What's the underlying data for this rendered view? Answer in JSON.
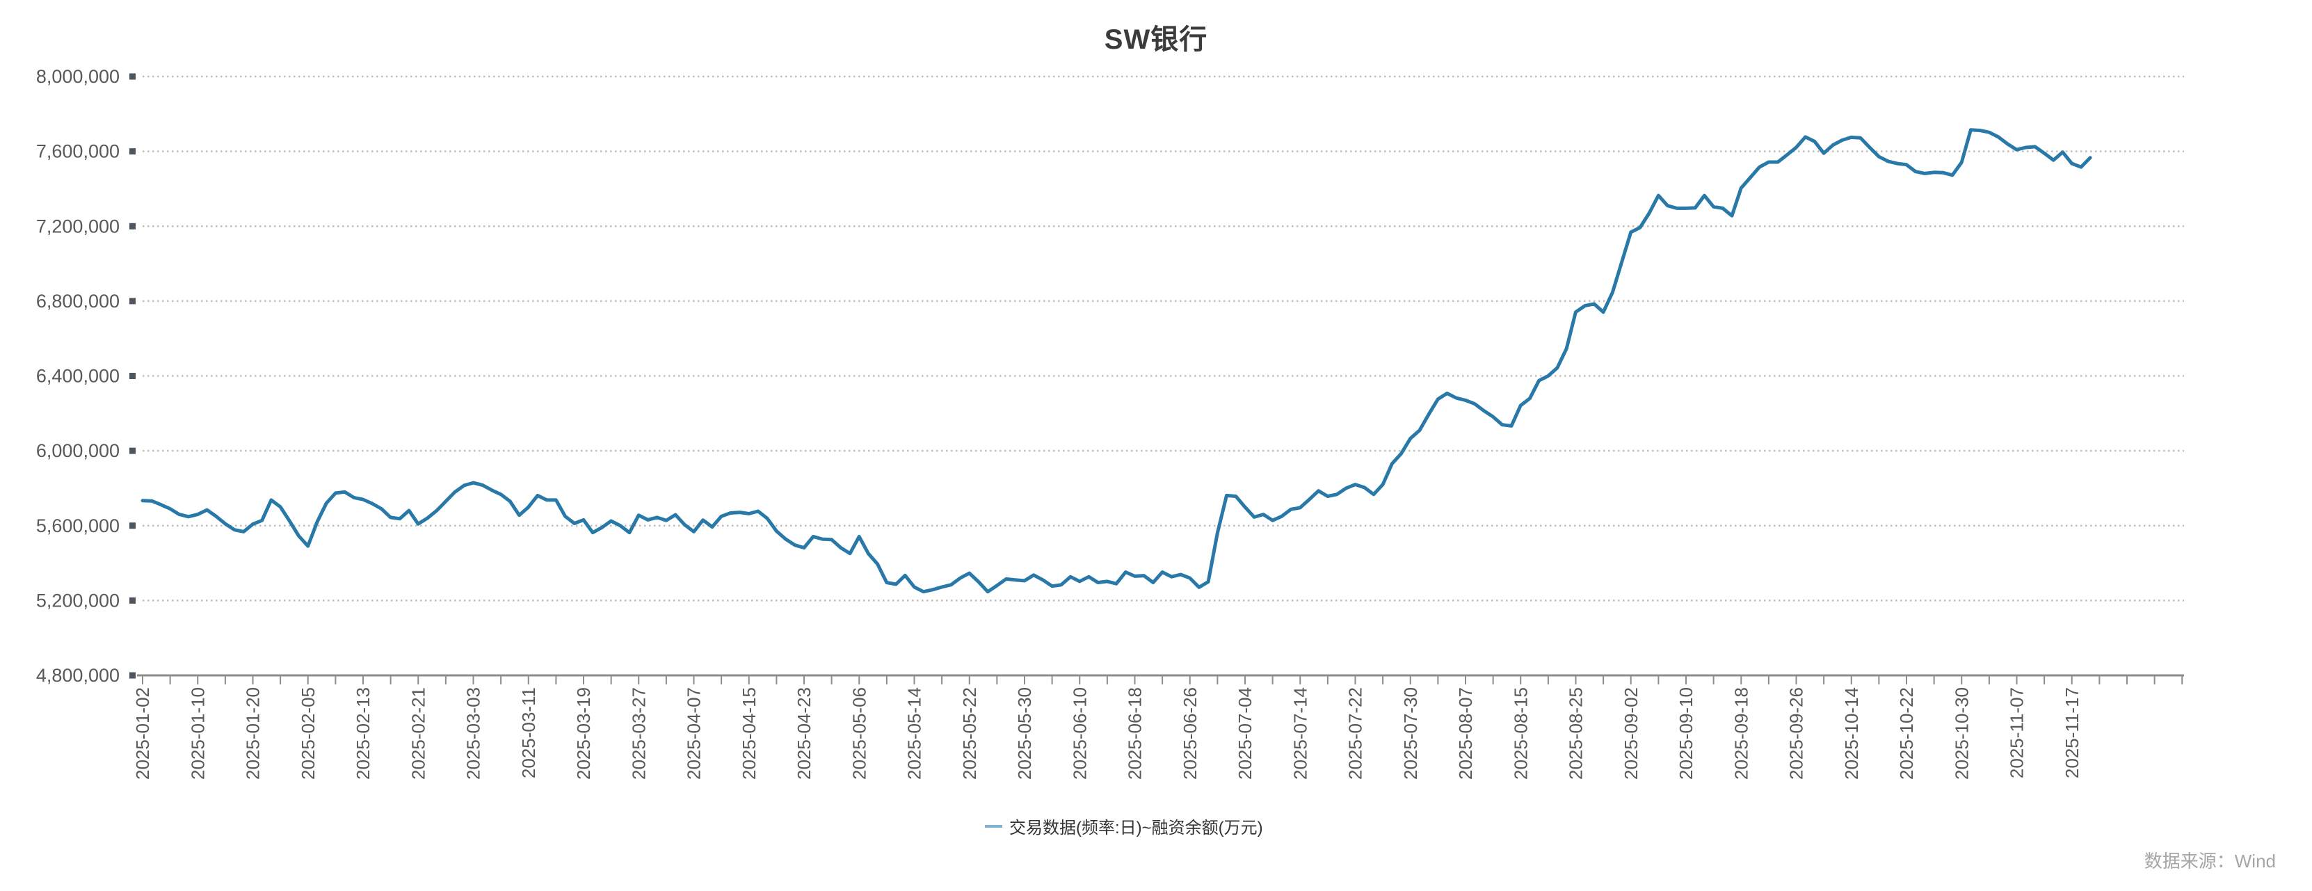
{
  "title": "SW银行",
  "legend": {
    "label": "交易数据(频率:日)~融资余额(万元)",
    "marker": "line-dash-icon"
  },
  "source_note": "数据来源：Wind",
  "colors": {
    "line": "#2878a8",
    "legend_marker": "#7fb3d3",
    "grid": "#bfbfbf",
    "axis": "#8c8c8c",
    "tick_square": "#4d555e",
    "axis_text": "#595959",
    "title_text": "#3b3b3b",
    "source_text": "#a6a6a6",
    "background": "#ffffff"
  },
  "chart_data": {
    "type": "line",
    "title": "SW银行",
    "xlabel": "",
    "ylabel": "",
    "ylim": [
      4800000,
      8000000
    ],
    "ytick_step": 400000,
    "y_tick_labels": [
      "4,800,000",
      "5,200,000",
      "5,600,000",
      "6,000,000",
      "6,400,000",
      "6,800,000",
      "7,200,000",
      "7,600,000",
      "8,000,000"
    ],
    "grid": "dotted-horizontal",
    "legend_position": "bottom-center",
    "x_tick_labels": [
      "2025-01-02",
      "2025-01-10",
      "2025-01-20",
      "2025-02-05",
      "2025-02-13",
      "2025-02-21",
      "2025-03-03",
      "2025-03-11",
      "2025-03-19",
      "2025-03-27",
      "2025-04-07",
      "2025-04-15",
      "2025-04-23",
      "2025-05-06",
      "2025-05-14",
      "2025-05-22",
      "2025-05-30",
      "2025-06-10",
      "2025-06-18",
      "2025-06-26",
      "2025-07-04",
      "2025-07-14",
      "2025-07-22",
      "2025-07-30",
      "2025-08-07",
      "2025-08-15",
      "2025-08-25",
      "2025-09-02",
      "2025-09-10",
      "2025-09-18",
      "2025-09-26",
      "2025-10-14",
      "2025-10-22",
      "2025-10-30",
      "2025-11-07",
      "2025-11-17"
    ],
    "x_label_every_n_points": 6,
    "series": [
      {
        "name": "交易数据(频率:日)~融资余额(万元)",
        "values": [
          5734000,
          5732000,
          5712000,
          5690000,
          5660000,
          5648000,
          5660000,
          5684000,
          5650000,
          5610000,
          5578000,
          5568000,
          5608000,
          5628000,
          5737000,
          5700000,
          5625000,
          5545000,
          5491000,
          5620000,
          5720000,
          5774000,
          5780000,
          5750000,
          5740000,
          5718000,
          5690000,
          5644000,
          5637000,
          5681000,
          5609000,
          5640000,
          5680000,
          5730000,
          5780000,
          5815000,
          5829000,
          5817000,
          5790000,
          5767000,
          5730000,
          5656000,
          5699000,
          5761000,
          5737000,
          5737000,
          5650000,
          5612000,
          5631000,
          5563000,
          5590000,
          5625000,
          5600000,
          5563000,
          5656000,
          5631000,
          5644000,
          5628000,
          5658000,
          5605000,
          5568000,
          5630000,
          5593000,
          5650000,
          5668000,
          5671000,
          5664000,
          5677000,
          5639000,
          5571000,
          5528000,
          5496000,
          5482000,
          5542000,
          5528000,
          5526000,
          5482000,
          5451000,
          5542000,
          5451000,
          5395000,
          5296000,
          5287000,
          5334000,
          5272000,
          5247000,
          5258000,
          5272000,
          5284000,
          5320000,
          5346000,
          5300000,
          5247000,
          5280000,
          5315000,
          5310000,
          5306000,
          5336000,
          5310000,
          5277000,
          5284000,
          5327000,
          5302000,
          5327000,
          5296000,
          5302000,
          5290000,
          5352000,
          5330000,
          5333000,
          5296000,
          5352000,
          5327000,
          5339000,
          5320000,
          5271000,
          5300000,
          5560000,
          5761000,
          5757000,
          5699000,
          5646000,
          5660000,
          5628000,
          5650000,
          5687000,
          5696000,
          5740000,
          5786000,
          5757000,
          5767000,
          5800000,
          5820000,
          5804000,
          5767000,
          5820000,
          5931000,
          5985000,
          6066000,
          6109000,
          6195000,
          6276000,
          6307000,
          6282000,
          6270000,
          6251000,
          6214000,
          6182000,
          6139000,
          6133000,
          6242000,
          6280000,
          6375000,
          6400000,
          6444000,
          6546000,
          6741000,
          6775000,
          6785000,
          6741000,
          6846000,
          7007000,
          7168000,
          7193000,
          7270000,
          7364000,
          7310000,
          7296000,
          7296000,
          7298000,
          7364000,
          7304000,
          7296000,
          7256000,
          7404000,
          7460000,
          7516000,
          7543000,
          7543000,
          7581000,
          7621000,
          7677000,
          7653000,
          7590000,
          7634000,
          7660000,
          7675000,
          7672000,
          7621000,
          7572000,
          7547000,
          7535000,
          7529000,
          7492000,
          7482000,
          7488000,
          7486000,
          7473000,
          7541000,
          7715000,
          7712000,
          7702000,
          7677000,
          7640000,
          7609000,
          7621000,
          7625000,
          7590000,
          7553000,
          7596000,
          7535000,
          7516000,
          7566000
        ]
      }
    ]
  }
}
